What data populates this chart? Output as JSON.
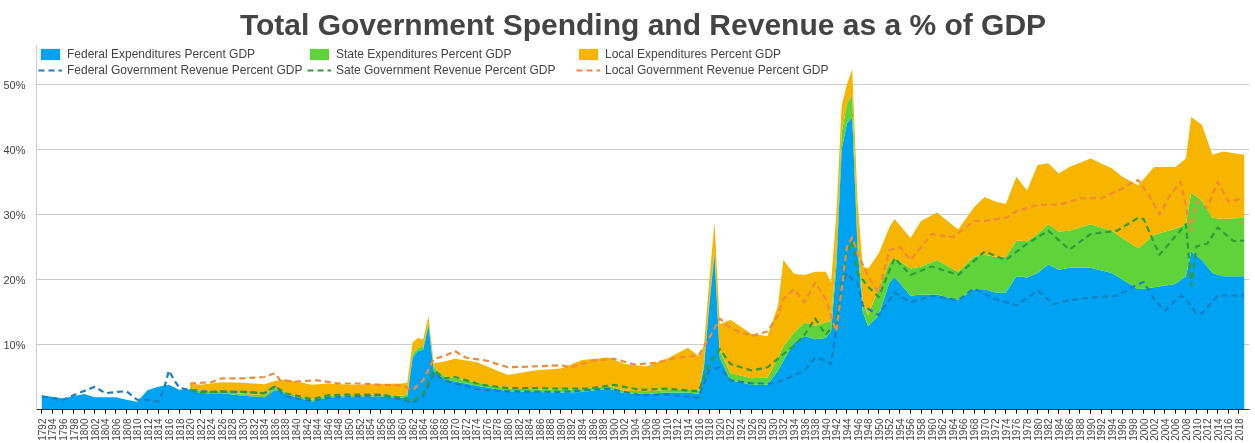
{
  "chart_data": {
    "type": "area",
    "title": "Total Government Spending and Revenue as a % of GDP",
    "stacked": true,
    "grid": "y",
    "legend": "top",
    "line_style": "dashed",
    "marker": "none",
    "xlim": [
      1791,
      2020
    ],
    "ylim": [
      0,
      56
    ],
    "xticks": [
      1792,
      1794,
      1796,
      1798,
      1800,
      1802,
      1804,
      1806,
      1808,
      1810,
      1812,
      1814,
      1816,
      1818,
      1820,
      1822,
      1824,
      1826,
      1828,
      1830,
      1832,
      1834,
      1836,
      1838,
      1840,
      1842,
      1844,
      1846,
      1848,
      1850,
      1852,
      1854,
      1856,
      1858,
      1860,
      1862,
      1864,
      1866,
      1868,
      1870,
      1872,
      1874,
      1876,
      1878,
      1880,
      1882,
      1884,
      1886,
      1888,
      1890,
      1892,
      1894,
      1896,
      1898,
      1900,
      1902,
      1904,
      1906,
      1908,
      1910,
      1912,
      1914,
      1916,
      1918,
      1920,
      1922,
      1924,
      1926,
      1928,
      1930,
      1932,
      1934,
      1936,
      1938,
      1940,
      1942,
      1944,
      1946,
      1948,
      1950,
      1952,
      1954,
      1956,
      1958,
      1960,
      1962,
      1964,
      1966,
      1968,
      1970,
      1972,
      1974,
      1976,
      1978,
      1980,
      1982,
      1984,
      1986,
      1988,
      1990,
      1992,
      1994,
      1996,
      1998,
      2000,
      2002,
      2004,
      2006,
      2008,
      2010,
      2012,
      2014,
      2016,
      2018
    ],
    "yticks": [
      {
        "value": 10,
        "label": "10%"
      },
      {
        "value": 20,
        "label": "20%"
      },
      {
        "value": 30,
        "label": "30%"
      },
      {
        "value": 40,
        "label": "40%"
      },
      {
        "value": 50,
        "label": "50%"
      }
    ],
    "x": [
      1792,
      1796,
      1800,
      1802,
      1806,
      1808,
      1810,
      1812,
      1814,
      1816,
      1818,
      1820,
      1822,
      1826,
      1830,
      1834,
      1836,
      1838,
      1843,
      1846,
      1850,
      1855,
      1860,
      1861,
      1862,
      1863,
      1864,
      1865,
      1866,
      1868,
      1870,
      1874,
      1880,
      1885,
      1890,
      1894,
      1899,
      1902,
      1906,
      1910,
      1914,
      1916,
      1917,
      1918,
      1919,
      1920,
      1922,
      1926,
      1929,
      1931,
      1932,
      1934,
      1936,
      1938,
      1940,
      1941,
      1942,
      1943,
      1944,
      1945,
      1946,
      1947,
      1948,
      1950,
      1952,
      1953,
      1956,
      1958,
      1961,
      1965,
      1968,
      1970,
      1972,
      1974,
      1976,
      1978,
      1980,
      1982,
      1984,
      1986,
      1990,
      1994,
      1996,
      1999,
      2002,
      2006,
      2008,
      2009,
      2011,
      2013,
      2015,
      2019
    ],
    "series": [
      {
        "name": "Federal Expenditures Percent GDP",
        "color": "#00a2f2",
        "values": [
          2.2,
          1.7,
          2.4,
          1.9,
          1.9,
          1.5,
          1.2,
          3.0,
          3.5,
          3.8,
          3.0,
          3.1,
          2.5,
          2.5,
          2.1,
          1.9,
          3.0,
          2.4,
          1.2,
          1.9,
          1.9,
          2.0,
          1.8,
          2.0,
          8.0,
          9.0,
          9.2,
          13.0,
          6.0,
          4.6,
          4.3,
          3.7,
          2.8,
          2.7,
          2.6,
          2.7,
          3.2,
          2.5,
          2.4,
          2.6,
          2.6,
          2.4,
          6.5,
          16.0,
          24.0,
          8.0,
          4.5,
          3.8,
          3.8,
          6.0,
          7.5,
          10.3,
          11.3,
          10.8,
          11.0,
          12.0,
          22.0,
          40.0,
          44.0,
          45.0,
          25.0,
          15.0,
          12.8,
          14.5,
          19.5,
          20.4,
          17.5,
          17.7,
          17.7,
          16.8,
          18.5,
          18.5,
          18.0,
          18.0,
          20.5,
          20.3,
          21.0,
          22.3,
          21.5,
          21.8,
          21.8,
          21.0,
          20.0,
          18.5,
          18.8,
          19.3,
          20.5,
          24.3,
          23.0,
          21.0,
          20.5,
          20.5
        ]
      },
      {
        "name": "State Expenditures Percent GDP",
        "color": "#5fd43a",
        "values": [
          null,
          null,
          null,
          null,
          null,
          null,
          null,
          null,
          null,
          null,
          null,
          0.3,
          0.3,
          0.3,
          0.3,
          0.3,
          0.3,
          0.3,
          0.3,
          0.3,
          0.3,
          0.3,
          0.3,
          0.3,
          0.5,
          0.5,
          0.5,
          0.5,
          0.5,
          0.5,
          0.5,
          0.5,
          0.4,
          0.4,
          0.4,
          0.4,
          0.4,
          0.4,
          0.4,
          0.4,
          0.4,
          0.5,
          0.5,
          0.5,
          0.5,
          1.0,
          1.1,
          1.0,
          1.1,
          2.0,
          2.2,
          1.5,
          2.1,
          2.1,
          2.4,
          1.6,
          2.0,
          2.5,
          3.0,
          3.5,
          2.0,
          1.5,
          1.7,
          4.1,
          3.0,
          2.9,
          4.2,
          4.3,
          5.3,
          4.4,
          5.0,
          5.3,
          5.5,
          5.5,
          5.5,
          5.6,
          6.0,
          6.2,
          5.9,
          5.7,
          6.7,
          6.5,
          6.4,
          6.3,
          8.1,
          8.5,
          8.0,
          9.1,
          9.1,
          8.5,
          8.8,
          9.0
        ]
      },
      {
        "name": "Local Expenditures Percent GDP",
        "color": "#f7b500",
        "values": [
          null,
          null,
          null,
          null,
          null,
          null,
          null,
          null,
          null,
          null,
          null,
          0.6,
          1.0,
          1.4,
          1.7,
          1.7,
          1.1,
          1.9,
          2.3,
          1.8,
          1.6,
          1.6,
          1.9,
          1.8,
          1.8,
          1.5,
          1.1,
          0.9,
          0.6,
          2.3,
          3.0,
          3.1,
          2.1,
          2.9,
          3.3,
          4.5,
          4.4,
          4.1,
          3.8,
          4.8,
          6.5,
          5.3,
          2.8,
          3.1,
          4.3,
          4.1,
          8.2,
          6.8,
          6.4,
          8.0,
          13.3,
          9.1,
          7.3,
          8.3,
          7.8,
          5.9,
          6.0,
          4.2,
          3.0,
          3.9,
          5.0,
          5.5,
          7.2,
          5.4,
          5.5,
          6.0,
          4.7,
          7.0,
          7.3,
          6.5,
          7.6,
          8.9,
          8.5,
          8.1,
          9.8,
          7.8,
          10.6,
          9.4,
          8.9,
          9.8,
          10.1,
          9.6,
          9.4,
          9.7,
          10.4,
          9.5,
          10.1,
          11.6,
          11.7,
          9.7,
          10.4,
          9.7
        ]
      },
      {
        "name": "Federal Government Revenue Percent GDP",
        "type": "line",
        "color": "#1b7fc4",
        "x": [
          1792,
          1796,
          1798,
          1802,
          1804,
          1806,
          1808,
          1810,
          1812,
          1814,
          1815,
          1816,
          1817,
          1818,
          1820,
          1824,
          1830,
          1834,
          1836,
          1838,
          1843,
          1846,
          1850,
          1856,
          1860,
          1862,
          1864,
          1866,
          1868,
          1870,
          1875,
          1880,
          1890,
          1899,
          1905,
          1910,
          1916,
          1918,
          1920,
          1922,
          1926,
          1930,
          1932,
          1936,
          1938,
          1940,
          1941,
          1942,
          1943,
          1944,
          1945,
          1946,
          1947,
          1948,
          1950,
          1953,
          1956,
          1960,
          1965,
          1968,
          1972,
          1976,
          1980,
          1983,
          1986,
          1990,
          1995,
          1998,
          2000,
          2002,
          2004,
          2007,
          2008,
          2010,
          2011,
          2014,
          2016,
          2019
        ],
        "values": [
          2.0,
          1.5,
          2.2,
          3.5,
          2.5,
          2.7,
          2.8,
          1.5,
          1.5,
          1.2,
          3.0,
          6.0,
          4.5,
          3.3,
          3.0,
          2.7,
          2.7,
          2.5,
          3.5,
          2.0,
          1.3,
          1.8,
          2.0,
          2.2,
          1.5,
          1.0,
          2.0,
          5.5,
          4.5,
          4.0,
          3.0,
          2.8,
          2.7,
          3.2,
          2.2,
          2.3,
          1.8,
          6.0,
          6.5,
          4.5,
          4.0,
          4.0,
          4.5,
          6.0,
          8.0,
          7.5,
          7.0,
          12.5,
          19.5,
          21.0,
          20.0,
          19.5,
          16.0,
          15.5,
          14.5,
          18.0,
          16.5,
          17.5,
          16.8,
          18.6,
          17.0,
          16.0,
          18.3,
          16.2,
          16.8,
          17.2,
          17.5,
          18.9,
          19.6,
          17.0,
          15.2,
          17.5,
          17.0,
          14.7,
          14.8,
          17.5,
          17.5,
          17.5
        ]
      },
      {
        "name": "Sate Government Revenue Percent GDP",
        "type": "line",
        "color": "#2e9e3a",
        "x": [
          1820,
          1822,
          1826,
          1830,
          1834,
          1836,
          1838,
          1843,
          1846,
          1850,
          1856,
          1860,
          1862,
          1864,
          1866,
          1868,
          1870,
          1875,
          1880,
          1885,
          1890,
          1895,
          1900,
          1905,
          1910,
          1916,
          1918,
          1920,
          1922,
          1926,
          1929,
          1932,
          1934,
          1936,
          1938,
          1940,
          1942,
          1944,
          1945,
          1946,
          1948,
          1950,
          1953,
          1956,
          1960,
          1965,
          1970,
          1974,
          1978,
          1982,
          1986,
          1990,
          1995,
          1999,
          2000,
          2003,
          2008,
          2009,
          2010,
          2012,
          2014,
          2017,
          2019
        ],
        "values": [
          3.0,
          2.6,
          2.8,
          2.7,
          2.5,
          3.6,
          2.5,
          1.6,
          2.2,
          2.3,
          2.3,
          1.8,
          1.3,
          2.4,
          6.0,
          4.8,
          5.0,
          3.8,
          3.3,
          3.3,
          3.2,
          3.2,
          3.8,
          3.0,
          3.2,
          2.8,
          7.0,
          9.3,
          7.0,
          6.0,
          6.5,
          8.5,
          9.8,
          11.5,
          14.0,
          11.5,
          13.5,
          24.0,
          26.0,
          21.0,
          18.9,
          17.3,
          23.3,
          20.7,
          22.0,
          20.7,
          24.3,
          23.0,
          25.5,
          27.5,
          24.6,
          27.0,
          27.5,
          29.5,
          29.3,
          23.8,
          28.5,
          19.1,
          25.1,
          25.5,
          28.0,
          25.9,
          26.0
        ]
      },
      {
        "name": "Local Government Revenue Percent GDP",
        "type": "line",
        "color": "#f28a3c",
        "x": [
          1820,
          1824,
          1826,
          1830,
          1834,
          1836,
          1837,
          1840,
          1844,
          1848,
          1852,
          1856,
          1860,
          1862,
          1864,
          1866,
          1868,
          1870,
          1872,
          1876,
          1880,
          1884,
          1890,
          1892,
          1896,
          1900,
          1904,
          1908,
          1912,
          1916,
          1918,
          1920,
          1922,
          1926,
          1929,
          1931,
          1932,
          1934,
          1936,
          1938,
          1940,
          1942,
          1944,
          1945,
          1946,
          1948,
          1950,
          1952,
          1954,
          1956,
          1960,
          1964,
          1968,
          1970,
          1974,
          1976,
          1980,
          1984,
          1988,
          1992,
          1996,
          1998,
          1999,
          2001,
          2003,
          2005,
          2007,
          2009,
          2010,
          2012,
          2014,
          2016,
          2019
        ],
        "values": [
          4.0,
          4.2,
          4.8,
          4.8,
          5.0,
          5.6,
          4.5,
          4.3,
          4.5,
          4.0,
          4.0,
          3.8,
          3.7,
          3.0,
          4.5,
          7.8,
          8.2,
          9.0,
          8.0,
          7.5,
          6.5,
          6.6,
          6.8,
          6.5,
          7.5,
          7.8,
          6.9,
          7.2,
          8.0,
          8.3,
          11.0,
          14.0,
          12.5,
          11.3,
          12.0,
          14.5,
          17.0,
          18.5,
          16.5,
          19.5,
          17.0,
          12.0,
          25.0,
          26.5,
          24.0,
          20.5,
          18.0,
          24.5,
          25.0,
          23.0,
          27.0,
          26.5,
          29.0,
          29.0,
          29.5,
          30.5,
          31.5,
          31.5,
          32.5,
          32.5,
          34.0,
          35.0,
          35.3,
          33.0,
          30.0,
          33.0,
          35.0,
          27.5,
          32.0,
          31.0,
          35.0,
          32.0,
          32.5
        ]
      }
    ]
  }
}
